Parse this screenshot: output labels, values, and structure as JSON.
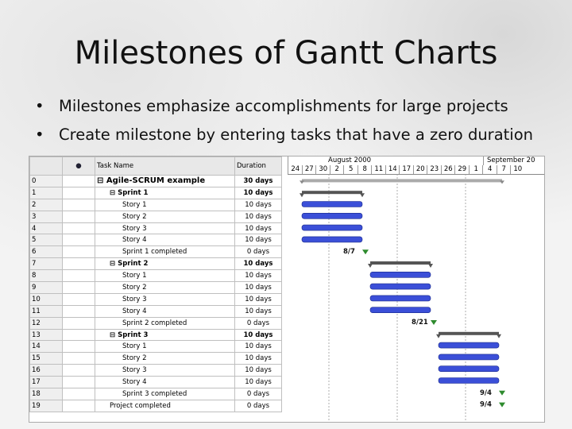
{
  "slide": {
    "title": "Milestones of Gantt Charts",
    "bullets": [
      "Milestones emphasize accomplishments for large projects",
      "Create milestone by entering tasks that have a zero duration"
    ]
  },
  "table": {
    "headers": {
      "id": "",
      "indicator": "●",
      "name": "Task Name",
      "duration": "Duration"
    },
    "rows": [
      {
        "id": "0",
        "name": "Agile-SCRUM example",
        "duration": "30 days",
        "level": 0,
        "summary": true
      },
      {
        "id": "1",
        "name": "Sprint 1",
        "duration": "10 days",
        "level": 1,
        "summary": true
      },
      {
        "id": "2",
        "name": "Story 1",
        "duration": "10 days",
        "level": 2
      },
      {
        "id": "3",
        "name": "Story 2",
        "duration": "10 days",
        "level": 2
      },
      {
        "id": "4",
        "name": "Story 3",
        "duration": "10 days",
        "level": 2
      },
      {
        "id": "5",
        "name": "Story 4",
        "duration": "10 days",
        "level": 2
      },
      {
        "id": "6",
        "name": "Sprint 1 completed",
        "duration": "0 days",
        "level": 2
      },
      {
        "id": "7",
        "name": "Sprint 2",
        "duration": "10 days",
        "level": 1,
        "summary": true
      },
      {
        "id": "8",
        "name": "Story 1",
        "duration": "10 days",
        "level": 2
      },
      {
        "id": "9",
        "name": "Story 2",
        "duration": "10 days",
        "level": 2
      },
      {
        "id": "10",
        "name": "Story 3",
        "duration": "10 days",
        "level": 2
      },
      {
        "id": "11",
        "name": "Story 4",
        "duration": "10 days",
        "level": 2
      },
      {
        "id": "12",
        "name": "Sprint 2 completed",
        "duration": "0 days",
        "level": 2
      },
      {
        "id": "13",
        "name": "Sprint 3",
        "duration": "10 days",
        "level": 1,
        "summary": true
      },
      {
        "id": "14",
        "name": "Story 1",
        "duration": "10 days",
        "level": 2
      },
      {
        "id": "15",
        "name": "Story 2",
        "duration": "10 days",
        "level": 2
      },
      {
        "id": "16",
        "name": "Story 3",
        "duration": "10 days",
        "level": 2
      },
      {
        "id": "17",
        "name": "Story 4",
        "duration": "10 days",
        "level": 2
      },
      {
        "id": "18",
        "name": "Sprint 3 completed",
        "duration": "0 days",
        "level": 2
      },
      {
        "id": "19",
        "name": "Project completed",
        "duration": "0 days",
        "level": 1
      }
    ]
  },
  "timeline": {
    "months": [
      "August 2000",
      "September 20"
    ],
    "days": [
      "24",
      "27",
      "30",
      "2",
      "5",
      "8",
      "11",
      "14",
      "17",
      "20",
      "23",
      "26",
      "29",
      "1",
      "4",
      "7",
      "10"
    ],
    "milestones": [
      "8/7",
      "8/21",
      "9/4",
      "9/4"
    ]
  },
  "colors": {
    "bar": "#3b4fd8",
    "summary": "#555555",
    "milestone": "#2e8b2e"
  }
}
